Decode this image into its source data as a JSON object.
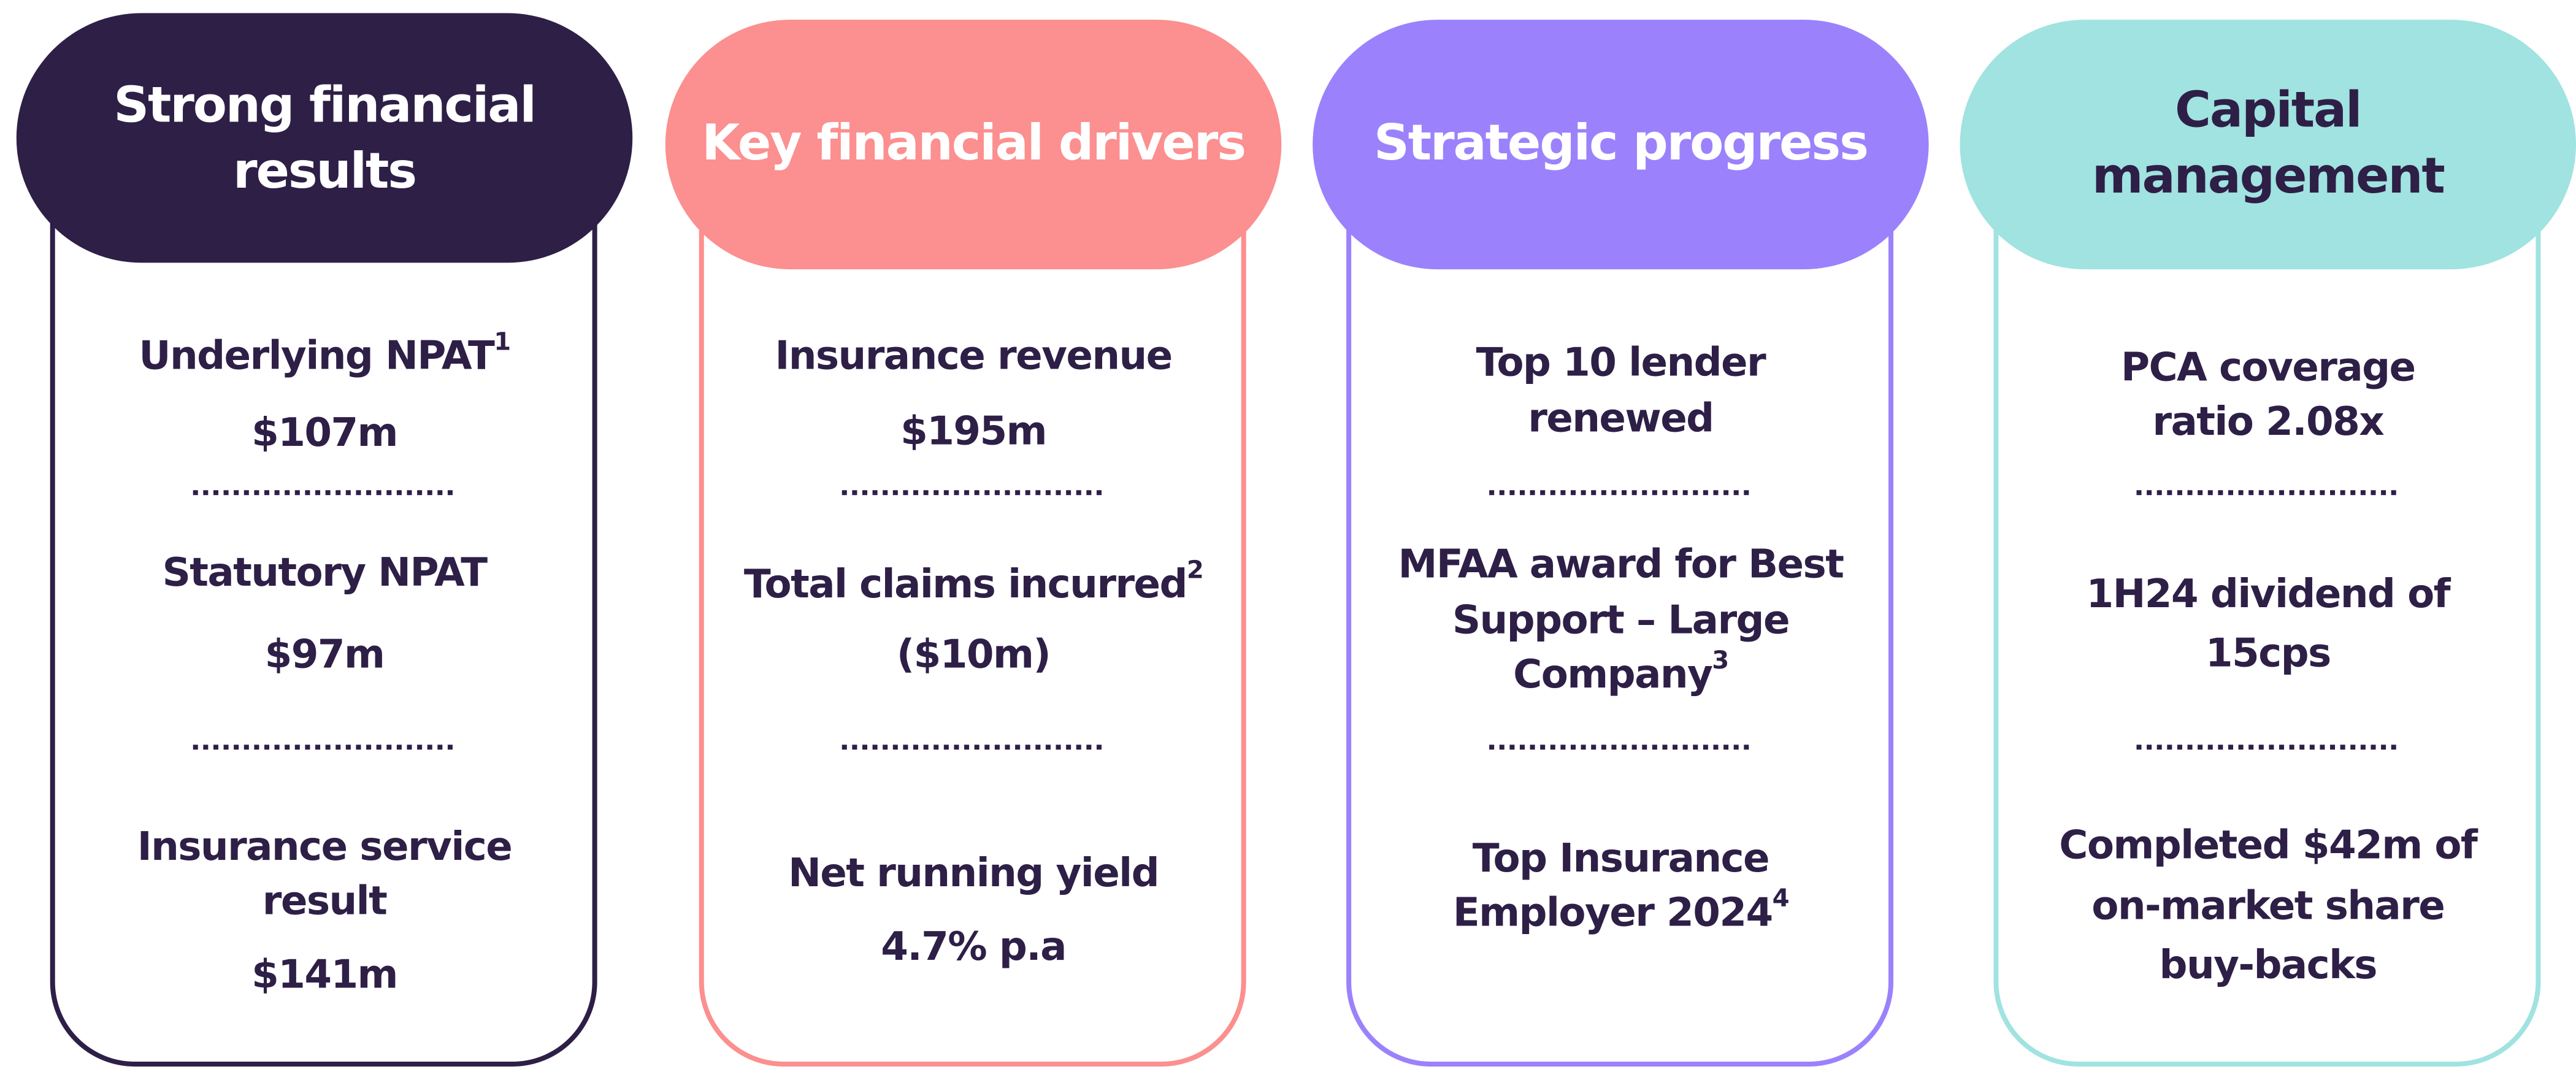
{
  "columns": [
    {
      "title": [
        "Strong financial",
        "results"
      ],
      "items": [
        {
          "lines": [
            "Underlying NPAT"
          ],
          "sup": "1",
          "value": "$107m"
        },
        {
          "lines": [
            "Statutory NPAT"
          ],
          "value": "$97m"
        },
        {
          "lines": [
            "Insurance service",
            "result"
          ],
          "value": "$141m"
        }
      ]
    },
    {
      "title": [
        "Key financial drivers"
      ],
      "items": [
        {
          "lines": [
            "Insurance revenue"
          ],
          "value": "$195m"
        },
        {
          "lines": [
            "Total claims incurred"
          ],
          "sup": "2",
          "value": "($10m)"
        },
        {
          "lines": [
            "Net running yield"
          ],
          "value": "4.7% p.a"
        }
      ]
    },
    {
      "title": [
        "Strategic progress"
      ],
      "items": [
        {
          "lines": [
            "Top 10 lender",
            "renewed"
          ]
        },
        {
          "lines": [
            "MFAA award for Best",
            "Support – Large",
            "Company"
          ],
          "sup": "3"
        },
        {
          "lines": [
            "Top Insurance",
            "Employer 2024"
          ],
          "sup": "4"
        }
      ]
    },
    {
      "title": [
        "Capital",
        "management"
      ],
      "items": [
        {
          "lines": [
            "PCA coverage",
            "ratio 2.08x"
          ]
        },
        {
          "lines": [
            "1H24 dividend of",
            "15cps"
          ]
        },
        {
          "lines": [
            "Completed $42m of",
            "on-market share",
            "buy-backs"
          ]
        }
      ]
    }
  ]
}
